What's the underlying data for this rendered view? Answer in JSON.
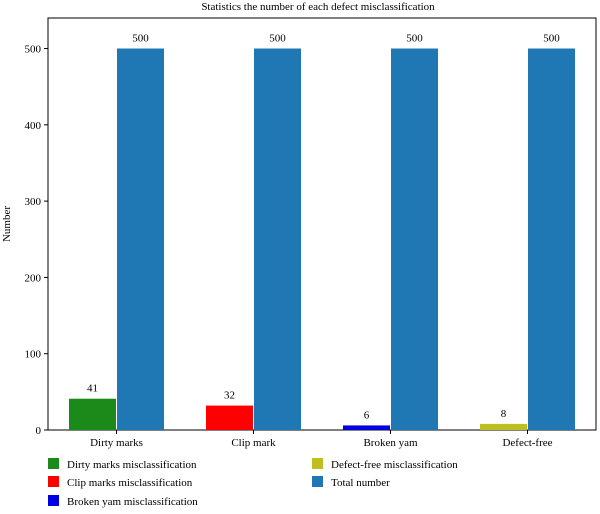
{
  "chart_data": {
    "type": "bar",
    "title": "Statistics the number of each defect misclassification",
    "xlabel": "",
    "ylabel": "Number",
    "categories": [
      "Dirty marks",
      "Clip mark",
      "Broken yam",
      "Defect-free"
    ],
    "ylim": [
      0,
      540
    ],
    "yticks": [
      0,
      100,
      200,
      300,
      400,
      500
    ],
    "grid": false,
    "legend_position": "bottom",
    "misclassification": [
      {
        "category": "Dirty marks",
        "value": 41,
        "name": "Dirty marks misclassification",
        "color": "#1b8a1b"
      },
      {
        "category": "Clip mark",
        "value": 32,
        "name": "Clip marks misclassification",
        "color": "#ff0000"
      },
      {
        "category": "Broken yam",
        "value": 6,
        "name": "Broken yam misclassification",
        "color": "#0000e0"
      },
      {
        "category": "Defect-free",
        "value": 8,
        "name": "Defect-free misclassification",
        "color": "#bfbf1f"
      }
    ],
    "total": {
      "name": "Total number",
      "values": [
        500,
        500,
        500,
        500
      ],
      "color": "#1f77b4"
    }
  }
}
